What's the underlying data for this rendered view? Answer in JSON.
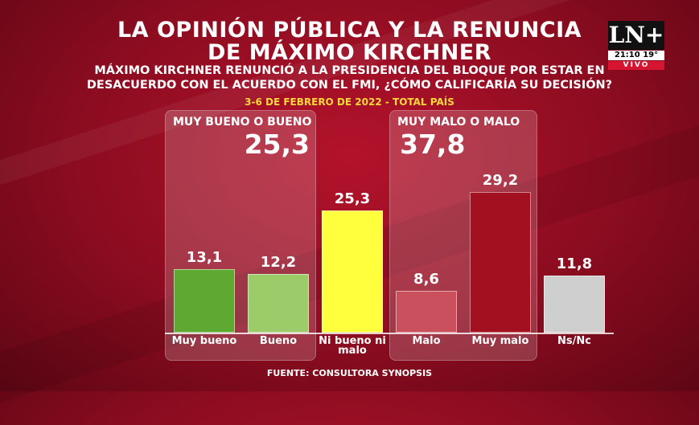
{
  "title_line1": "LA OPINIÓN PÚBLICA Y LA RENUNCIA",
  "title_line2": "DE MÁXIMO KIRCHNER",
  "subtitle_line1": "MÁXIMO KIRCHNER RENUNCIÓ A LA PRESIDENCIA DEL BLOQUE POR ESTAR EN",
  "subtitle_line2": "DESACUERDO CON EL ACUERDO CON EL FMI, ¿CÓMO CALIFICARÍA SU DECISIÓN?",
  "date_label": "3-6 DE FEBRERO DE 2022 - TOTAL PAÍS",
  "source": "FUENTE: CONSULTORA SYNOPSIS",
  "groups": [
    {
      "label": "MUY BUENO O BUENO",
      "value": "25,3"
    },
    {
      "label": "MUY MALO O MALO",
      "value": "37,8"
    }
  ],
  "channel": {
    "logo": "LN+",
    "time": "21:10",
    "temp": "19°",
    "live": "VIVO"
  },
  "chart_data": {
    "type": "bar",
    "categories": [
      "Muy bueno",
      "Bueno",
      "Ni bueno ni malo",
      "Malo",
      "Muy malo",
      "Ns/Nc"
    ],
    "values": [
      13.1,
      12.2,
      25.3,
      8.6,
      29.2,
      11.8
    ],
    "value_labels": [
      "13,1",
      "12,2",
      "25,3",
      "8,6",
      "29,2",
      "11,8"
    ],
    "colors": [
      "#5fa832",
      "#9ccc6a",
      "#ffff3d",
      "#c9505c",
      "#a3101f",
      "#cfcfcf"
    ],
    "ylim": [
      0,
      35
    ]
  }
}
